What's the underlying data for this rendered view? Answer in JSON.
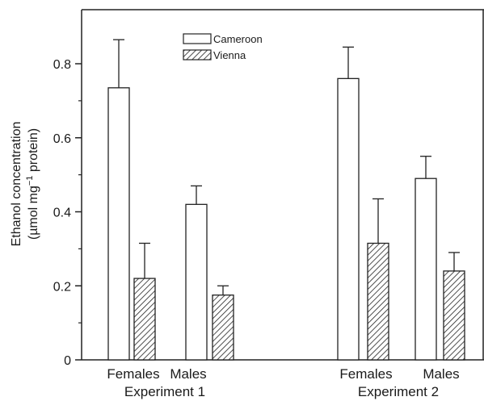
{
  "chart_data": {
    "type": "bar",
    "title": "",
    "ylabel_line1": "Ethanol concentration",
    "ylabel_line2_pre": "(µmol mg",
    "ylabel_line2_sup": "−1",
    "ylabel_line2_post": " protein)",
    "ylim": [
      0,
      0.9
    ],
    "yticks": [
      0,
      0.2,
      0.4,
      0.6,
      0.8
    ],
    "ytick_labels": [
      "0",
      "0.2",
      "0.4",
      "0.6",
      "0.8"
    ],
    "groups": [
      {
        "label": "Experiment 1",
        "categories": [
          "Females",
          "Males"
        ]
      },
      {
        "label": "Experiment 2",
        "categories": [
          "Females",
          "Males"
        ]
      }
    ],
    "series": [
      {
        "name": "Cameroon",
        "pattern": "open",
        "values": [
          0.735,
          0.42,
          0.76,
          0.49
        ],
        "errors": [
          0.13,
          0.05,
          0.085,
          0.06
        ]
      },
      {
        "name": "Vienna",
        "pattern": "hatched",
        "values": [
          0.22,
          0.175,
          0.315,
          0.24
        ],
        "errors": [
          0.095,
          0.025,
          0.12,
          0.05
        ]
      }
    ],
    "legend_position": "top-center",
    "grid": false
  }
}
